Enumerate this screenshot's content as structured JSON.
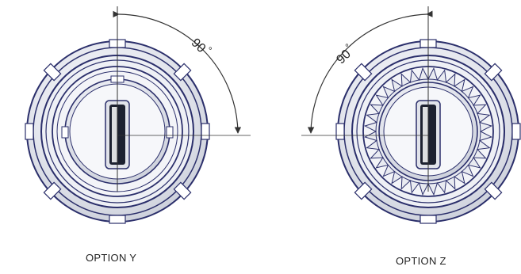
{
  "options": [
    {
      "id": "y",
      "caption": "OPTION Y",
      "angle_label": "90",
      "degree_symbol": "°",
      "variant": "plain-ring"
    },
    {
      "id": "z",
      "caption": "OPTION Z",
      "angle_label": "90",
      "degree_symbol": "°",
      "variant": "serrated-ring"
    }
  ],
  "colors": {
    "outline": "#2b2f6b",
    "metal_light": "#eceef3",
    "metal_mid": "#cfd3de",
    "slot_dark": "#1d2130",
    "line": "#333333"
  },
  "icons": [
    "rotation-arrow-icon",
    "key-slot-icon"
  ]
}
